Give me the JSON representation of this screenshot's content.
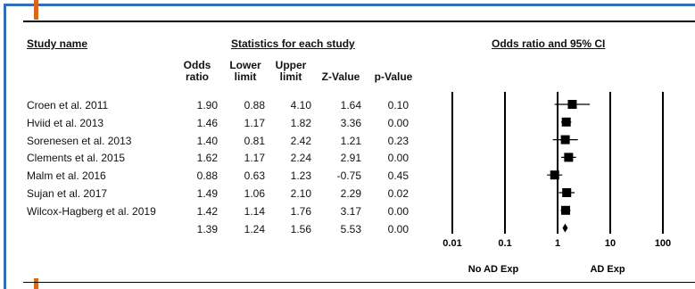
{
  "headers": {
    "study_name": "Study name",
    "statistics": "Statistics for each study",
    "odds_ratio_ci": "Odds ratio and 95% CI"
  },
  "columns": {
    "odds": [
      "Odds",
      "ratio"
    ],
    "lower": [
      "Lower",
      "limit"
    ],
    "upper": [
      "Upper",
      "limit"
    ],
    "z": "Z-Value",
    "p": "p-Value"
  },
  "rows": [
    {
      "name": "Croen et al. 2011",
      "or": "1.90",
      "lower": "0.88",
      "upper": "4.10",
      "z": "1.64",
      "p": "0.10"
    },
    {
      "name": "Hviid et al. 2013",
      "or": "1.46",
      "lower": "1.17",
      "upper": "1.82",
      "z": "3.36",
      "p": "0.00"
    },
    {
      "name": "Sorenesen et al. 2013",
      "or": "1.40",
      "lower": "0.81",
      "upper": "2.42",
      "z": "1.21",
      "p": "0.23"
    },
    {
      "name": "Clements et al. 2015",
      "or": "1.62",
      "lower": "1.17",
      "upper": "2.24",
      "z": "2.91",
      "p": "0.00"
    },
    {
      "name": "Malm et al. 2016",
      "or": "0.88",
      "lower": "0.63",
      "upper": "1.23",
      "z": "-0.75",
      "p": "0.45"
    },
    {
      "name": "Sujan et al. 2017",
      "or": "1.49",
      "lower": "1.06",
      "upper": "2.10",
      "z": "2.29",
      "p": "0.02"
    },
    {
      "name": "Wilcox-Hagberg et al. 2019",
      "or": "1.42",
      "lower": "1.14",
      "upper": "1.76",
      "z": "3.17",
      "p": "0.00"
    },
    {
      "name": "",
      "or": "1.39",
      "lower": "1.24",
      "upper": "1.56",
      "z": "5.53",
      "p": "0.00"
    }
  ],
  "chart_data": {
    "type": "forest",
    "scale": "log",
    "xlim": [
      0.01,
      100
    ],
    "ticks": [
      0.01,
      0.1,
      1,
      10,
      100
    ],
    "tick_labels": [
      "0.01",
      "0.1",
      "1",
      "10",
      "100"
    ],
    "left_label": "No AD Exp",
    "right_label": "AD Exp",
    "studies": [
      {
        "or": 1.9,
        "lower": 0.88,
        "upper": 4.1
      },
      {
        "or": 1.46,
        "lower": 1.17,
        "upper": 1.82
      },
      {
        "or": 1.4,
        "lower": 0.81,
        "upper": 2.42
      },
      {
        "or": 1.62,
        "lower": 1.17,
        "upper": 2.24
      },
      {
        "or": 0.88,
        "lower": 0.63,
        "upper": 1.23
      },
      {
        "or": 1.49,
        "lower": 1.06,
        "upper": 2.1
      },
      {
        "or": 1.42,
        "lower": 1.14,
        "upper": 1.76
      }
    ],
    "summary": {
      "or": 1.39,
      "lower": 1.24,
      "upper": 1.56
    }
  },
  "colors": {
    "frame": "#2e6fb7",
    "accent": "#d9661f"
  }
}
